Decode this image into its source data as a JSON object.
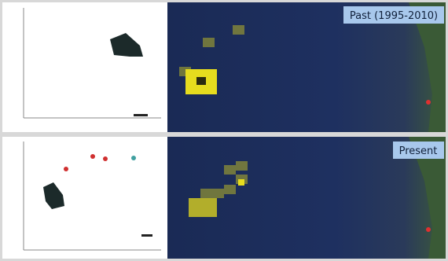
{
  "panels": [
    {
      "label": "Past (1995-2010)"
    },
    {
      "label": "Present"
    }
  ]
}
